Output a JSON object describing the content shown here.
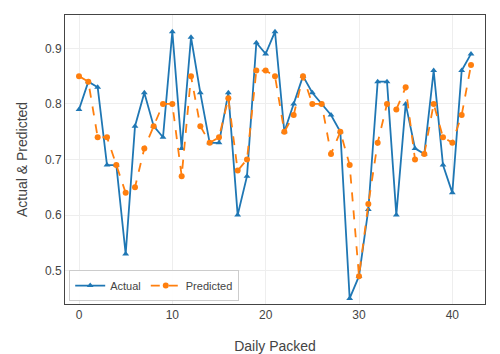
{
  "chart_data": {
    "type": "line",
    "x": [
      0,
      1,
      2,
      3,
      4,
      5,
      6,
      7,
      8,
      9,
      10,
      11,
      12,
      13,
      14,
      15,
      16,
      17,
      18,
      19,
      20,
      21,
      22,
      23,
      24,
      25,
      26,
      27,
      28,
      29,
      30,
      31,
      32,
      33,
      34,
      35,
      36,
      37,
      38,
      39,
      40,
      41,
      42
    ],
    "series": [
      {
        "name": "Actual",
        "color": "#1f77b4",
        "marker": "triangle",
        "line_style": "solid",
        "values": [
          0.79,
          0.84,
          0.83,
          0.69,
          0.69,
          0.53,
          0.76,
          0.82,
          0.76,
          0.74,
          0.93,
          0.72,
          0.92,
          0.82,
          0.73,
          0.73,
          0.82,
          0.6,
          0.67,
          0.91,
          0.89,
          0.93,
          0.75,
          0.8,
          0.85,
          0.82,
          0.8,
          0.78,
          0.75,
          0.45,
          0.49,
          0.61,
          0.84,
          0.84,
          0.6,
          0.8,
          0.72,
          0.71,
          0.86,
          0.69,
          0.64,
          0.86,
          0.89
        ]
      },
      {
        "name": "Predicted",
        "color": "#ff7f0e",
        "marker": "circle",
        "line_style": "dashed",
        "values": [
          0.85,
          0.84,
          0.74,
          0.74,
          0.69,
          0.64,
          0.65,
          0.72,
          0.76,
          0.8,
          0.8,
          0.67,
          0.85,
          0.76,
          0.73,
          0.74,
          0.81,
          0.68,
          0.7,
          0.86,
          0.86,
          0.85,
          0.75,
          0.78,
          0.85,
          0.8,
          0.8,
          0.71,
          0.75,
          0.69,
          0.49,
          0.62,
          0.73,
          0.8,
          0.79,
          0.83,
          0.7,
          0.71,
          0.8,
          0.74,
          0.73,
          0.78,
          0.87
        ]
      }
    ],
    "xlabel": "Daily Packed",
    "ylabel": "Actual & Predicted",
    "xlim": [
      -1.5,
      43.5
    ],
    "xticks": [
      0,
      10,
      20,
      30,
      40
    ],
    "ylim": [
      0.44,
      0.96
    ],
    "yticks": [
      0.5,
      0.6,
      0.7,
      0.8,
      0.9
    ],
    "grid": true,
    "legend": "lower left"
  }
}
